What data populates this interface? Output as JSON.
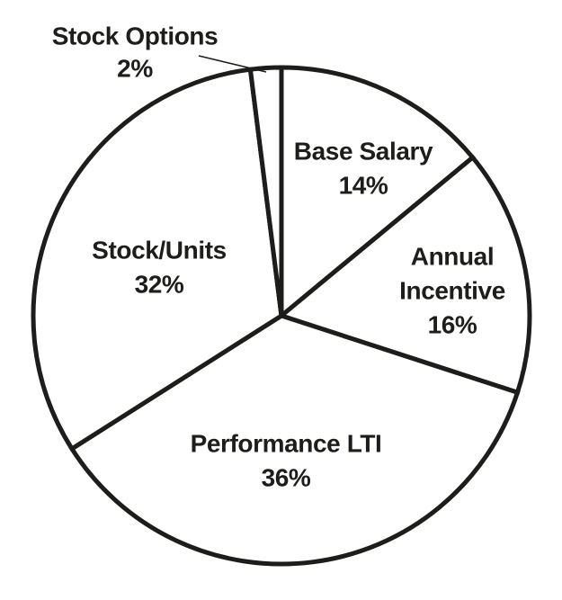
{
  "chart_data": {
    "type": "pie",
    "title": "",
    "slices": [
      {
        "label": "Base Salary",
        "value": 14,
        "pct_label": "14%"
      },
      {
        "label": "Annual Incentive",
        "value": 16,
        "pct_label": "16%"
      },
      {
        "label": "Performance LTI",
        "value": 36,
        "pct_label": "36%"
      },
      {
        "label": "Stock/Units",
        "value": 32,
        "pct_label": "32%"
      },
      {
        "label": "Stock Options",
        "value": 2,
        "pct_label": "2%"
      }
    ],
    "start_angle_deg": 0,
    "direction": "clockwise",
    "total": 100,
    "legend": "none",
    "labels_position": "inside-except-callout",
    "callout_slice": "Stock Options",
    "colors": {
      "slice_fill": "#ffffff",
      "stroke": "#1d1d1b",
      "text": "#1d1d1b",
      "background": "#ffffff"
    }
  }
}
